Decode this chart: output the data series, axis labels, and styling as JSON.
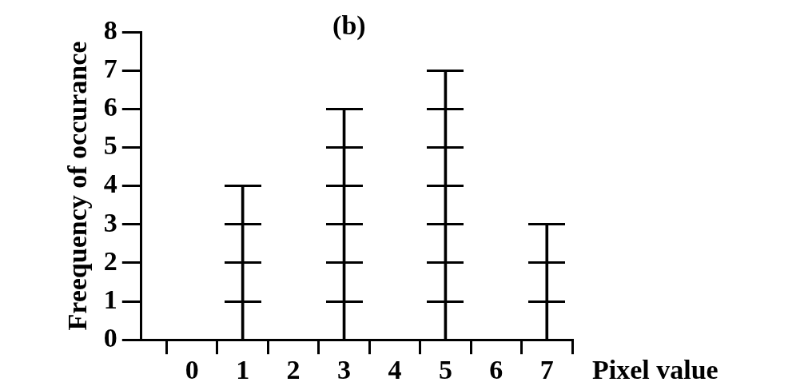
{
  "chart_data": {
    "type": "bar",
    "title": "(b)",
    "xlabel": "Pixel value",
    "ylabel": "Freequency of occurance",
    "x": [
      0,
      1,
      2,
      3,
      4,
      5,
      6,
      7
    ],
    "values": [
      0,
      4,
      0,
      6,
      0,
      7,
      0,
      3
    ],
    "color": "#000000",
    "xlim": [
      -1,
      7.5
    ],
    "xticks": [
      0,
      1,
      2,
      3,
      4,
      5,
      6,
      7
    ],
    "ylim": [
      0,
      8
    ],
    "yticks": [
      0,
      1,
      2,
      3,
      4,
      5,
      6,
      7,
      8
    ],
    "grid": false,
    "legend": false
  }
}
